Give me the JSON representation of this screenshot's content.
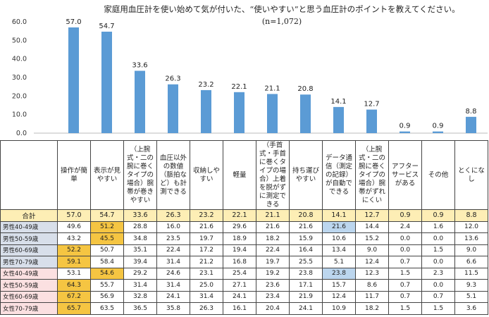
{
  "chart_data": {
    "type": "bar",
    "title": "家庭用血圧計を使い始めて気が付いた、“使いやすい”と思う血圧計のポイントを教えてください。",
    "subtitle": "(n=1,072)",
    "ylim": [
      0,
      60
    ],
    "yticks": [
      "0.0",
      "10.0",
      "20.0",
      "30.0",
      "40.0",
      "50.0",
      "60.0"
    ],
    "grid": false,
    "bar_color": "#5b9bd5",
    "categories": [
      "操作が簡単",
      "表示が見やすい",
      "（上腕式・二の腕に巻くタイプの場合）腕帯が巻きやすい",
      "血圧以外の数値（脈拍など）も計測できる",
      "収納しやすい",
      "軽量",
      "（手首式・手首に巻くタイプの場合）上着を脱がずに測定できる",
      "持ち運びやすい",
      "データ通信（測定の記録）が自動でできる",
      "（上腕式・二の腕に巻くタイプの場合）腕帯がずれにくい",
      "アフターサービスがある",
      "その他",
      "とくになし"
    ],
    "values": [
      57.0,
      54.7,
      33.6,
      26.3,
      23.2,
      22.1,
      21.1,
      20.8,
      14.1,
      12.7,
      0.9,
      0.9,
      8.8
    ],
    "value_labels": [
      "57.0",
      "54.7",
      "33.6",
      "26.3",
      "23.2",
      "22.1",
      "21.1",
      "20.8",
      "14.1",
      "12.7",
      "0.9",
      "0.9",
      "8.8"
    ]
  },
  "table": {
    "headers": [
      "操作が簡単",
      "表示が見やすい",
      "（上腕式・二の腕に巻くタイプの場合）腕帯が巻きやすい",
      "血圧以外の数値（脈拍など）も計測できる",
      "収納しやすい",
      "軽量",
      "（手首式・手首に巻くタイプの場合）上着を脱がずに測定できる",
      "持ち運びやすい",
      "データ通信（測定の記録）が自動でできる",
      "（上腕式・二の腕に巻くタイプの場合）腕帯がずれにくい",
      "アフターサービスがある",
      "その他",
      "とくになし"
    ],
    "highlight_colors": {
      "yellow": "#f5c542",
      "blue": "#bcd6ee"
    },
    "rows": [
      {
        "label": "合計",
        "group": "total",
        "values": [
          "57.0",
          "54.7",
          "33.6",
          "26.3",
          "23.2",
          "22.1",
          "21.1",
          "20.8",
          "14.1",
          "12.7",
          "0.9",
          "0.9",
          "8.8"
        ],
        "highlight": {}
      },
      {
        "label": "男性40-49歳",
        "group": "male",
        "values": [
          "49.6",
          "51.2",
          "28.8",
          "16.0",
          "21.6",
          "29.6",
          "21.6",
          "21.6",
          "21.6",
          "14.4",
          "2.4",
          "1.6",
          "12.0"
        ],
        "highlight": {
          "1": "yellow",
          "8": "blue"
        }
      },
      {
        "label": "男性50-59歳",
        "group": "male",
        "values": [
          "43.2",
          "45.5",
          "34.8",
          "23.5",
          "19.7",
          "18.9",
          "18.2",
          "15.9",
          "10.6",
          "15.2",
          "0.0",
          "0.0",
          "13.6"
        ],
        "highlight": {
          "1": "yellow"
        }
      },
      {
        "label": "男性60-69歳",
        "group": "male",
        "values": [
          "52.2",
          "50.7",
          "35.1",
          "22.4",
          "17.2",
          "19.4",
          "22.4",
          "16.4",
          "13.4",
          "9.0",
          "0.0",
          "1.5",
          "9.0"
        ],
        "highlight": {
          "0": "yellow"
        }
      },
      {
        "label": "男性70-79歳",
        "group": "male",
        "values": [
          "59.1",
          "58.4",
          "39.4",
          "31.4",
          "21.2",
          "16.8",
          "19.7",
          "25.5",
          "5.1",
          "12.4",
          "0.7",
          "0.0",
          "6.6"
        ],
        "highlight": {
          "0": "yellow"
        }
      },
      {
        "label": "女性40-49歳",
        "group": "female",
        "values": [
          "53.1",
          "54.6",
          "29.2",
          "24.6",
          "23.1",
          "25.4",
          "19.2",
          "23.8",
          "23.8",
          "12.3",
          "1.5",
          "2.3",
          "11.5"
        ],
        "highlight": {
          "1": "yellow",
          "8": "blue"
        }
      },
      {
        "label": "女性50-59歳",
        "group": "female",
        "values": [
          "64.3",
          "55.7",
          "31.4",
          "31.4",
          "25.0",
          "27.1",
          "23.6",
          "17.1",
          "15.7",
          "8.6",
          "0.7",
          "0.0",
          "9.3"
        ],
        "highlight": {
          "0": "yellow"
        }
      },
      {
        "label": "女性60-69歳",
        "group": "female",
        "values": [
          "67.2",
          "56.9",
          "32.8",
          "24.1",
          "31.4",
          "24.1",
          "23.4",
          "21.9",
          "12.4",
          "11.7",
          "0.7",
          "0.7",
          "5.1"
        ],
        "highlight": {
          "0": "yellow"
        }
      },
      {
        "label": "女性70-79歳",
        "group": "female",
        "values": [
          "65.7",
          "63.5",
          "36.5",
          "35.8",
          "26.3",
          "16.1",
          "20.4",
          "24.1",
          "10.9",
          "18.2",
          "1.5",
          "1.5",
          "3.6"
        ],
        "highlight": {
          "0": "yellow"
        }
      }
    ]
  }
}
